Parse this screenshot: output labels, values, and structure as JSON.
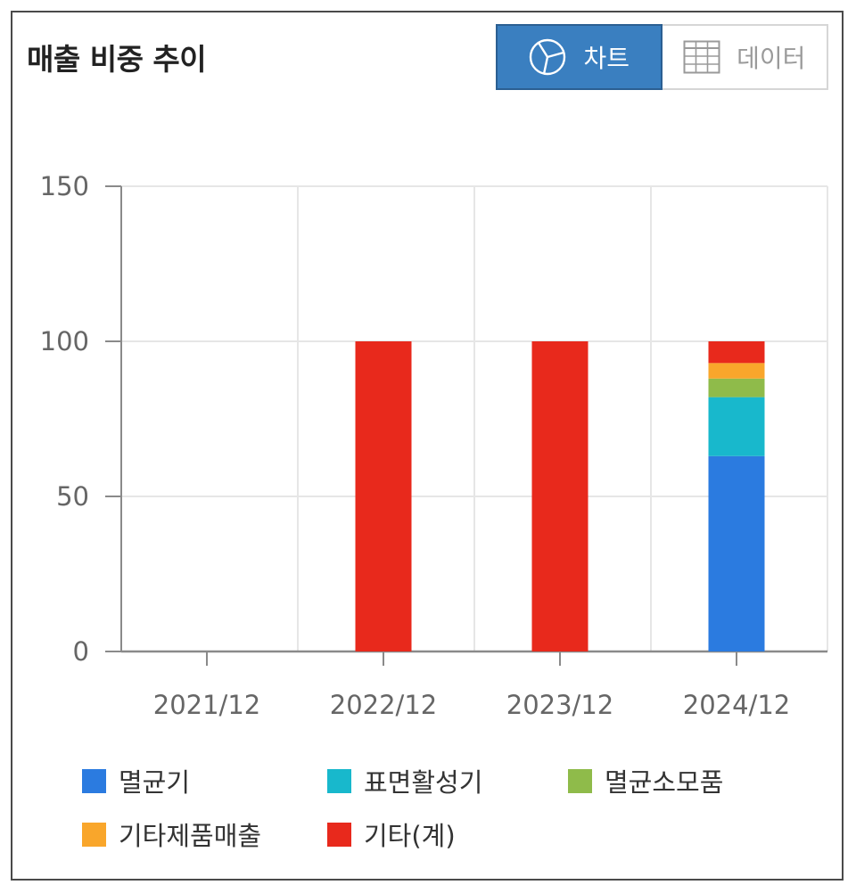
{
  "header": {
    "title": "매출 비중 추이",
    "chart_button": "차트",
    "data_button": "데이터"
  },
  "icons": {
    "chart_button_icon": "pie-chart-icon",
    "data_button_icon": "table-grid-icon"
  },
  "chart_data": {
    "type": "bar",
    "stacked": true,
    "categories": [
      "2021/12",
      "2022/12",
      "2023/12",
      "2024/12"
    ],
    "ylim": [
      0,
      150
    ],
    "yticks": [
      0,
      50,
      100,
      150
    ],
    "grid": true,
    "legend_position": "bottom",
    "series": [
      {
        "name": "멸균기",
        "color": "#2b7be0",
        "values": [
          0,
          0,
          0,
          63
        ]
      },
      {
        "name": "표면활성기",
        "color": "#18b8cc",
        "values": [
          0,
          0,
          0,
          19
        ]
      },
      {
        "name": "멸균소모품",
        "color": "#8fbb4a",
        "values": [
          0,
          0,
          0,
          6
        ]
      },
      {
        "name": "기타제품매출",
        "color": "#f9a62b",
        "values": [
          0,
          0,
          0,
          5
        ]
      },
      {
        "name": "기타(계)",
        "color": "#e8291c",
        "values": [
          0,
          100,
          100,
          7
        ]
      }
    ]
  }
}
